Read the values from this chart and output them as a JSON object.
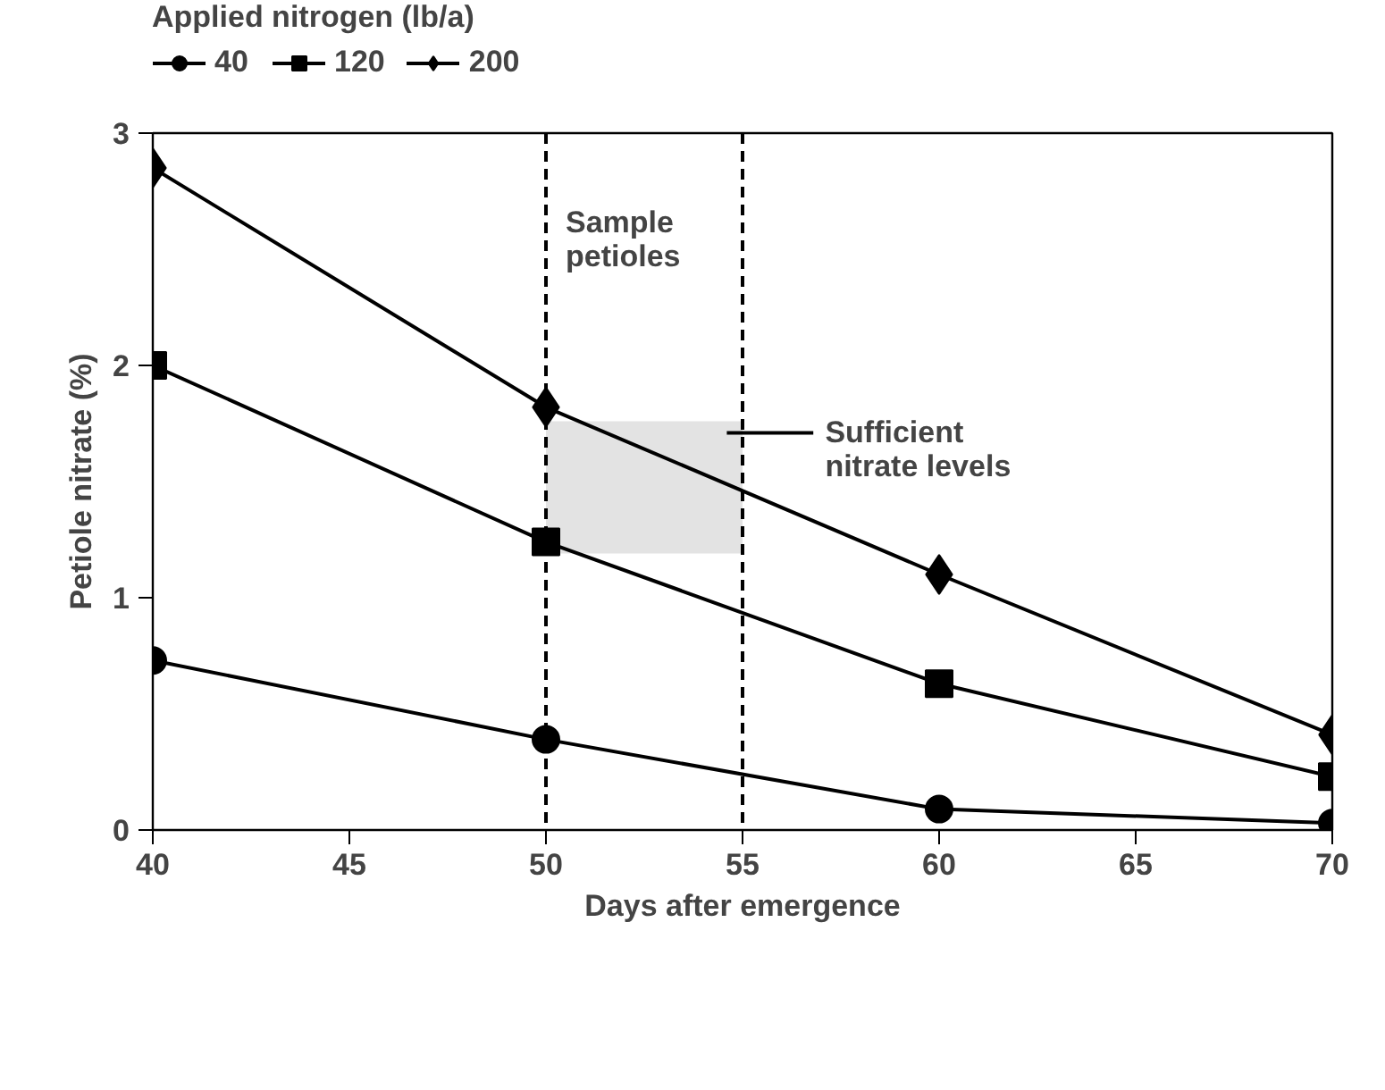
{
  "chart_data": {
    "type": "line",
    "xlabel": "Days after emergence",
    "ylabel": "Petiole nitrate (%)",
    "legend_title": "Applied nitrogen (lb/a)",
    "legend": "top left",
    "x": [
      40,
      50,
      60,
      70
    ],
    "series": [
      {
        "name": "40",
        "color": "#000000",
        "marker": "circle",
        "values": [
          0.73,
          0.39,
          0.09,
          0.03
        ]
      },
      {
        "name": "120",
        "color": "#000000",
        "marker": "square",
        "values": [
          2.0,
          1.24,
          0.63,
          0.23
        ]
      },
      {
        "name": "200",
        "color": "#000000",
        "marker": "diamond",
        "values": [
          2.85,
          1.82,
          1.1,
          0.41
        ]
      }
    ],
    "xlim": [
      40,
      70
    ],
    "xticks": [
      40,
      45,
      50,
      55,
      60,
      65,
      70
    ],
    "ylim": [
      0,
      3
    ],
    "yticks": [
      0,
      1,
      2,
      3
    ],
    "grid": false,
    "line_style": "solid",
    "ref_lines": [
      {
        "axis": "x",
        "value": 50,
        "label": "Sample petioles",
        "line_style": "dashed",
        "color": "#000000"
      },
      {
        "axis": "x",
        "value": 55,
        "label": null,
        "line_style": "dashed",
        "color": "#000000"
      }
    ],
    "bands": [
      {
        "axis": "y",
        "from": 1.19,
        "to": 1.76,
        "label": "Sufficient nitrate levels",
        "color": "#e3e3e3"
      }
    ]
  }
}
